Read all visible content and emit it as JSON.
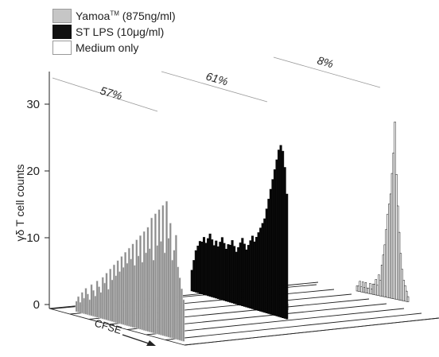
{
  "legend": {
    "items": [
      {
        "label_main": "Yamoa",
        "label_sup": "TM",
        "label_rest": " (875ng/ml)",
        "color": "#9e9e9e"
      },
      {
        "label_main": "ST LPS (10μg/ml)",
        "label_sup": "",
        "label_rest": "",
        "color": "#111111"
      },
      {
        "label_main": "Medium only",
        "label_sup": "",
        "label_rest": "",
        "color": "#ffffff"
      }
    ]
  },
  "chart_data": {
    "type": "histogram-3d",
    "ylabel": "γδ T cell counts",
    "xlabel": "CFSE",
    "ylim": [
      0,
      35
    ],
    "yticks": [
      0,
      10,
      20,
      30
    ],
    "series": [
      {
        "name": "Yamoa (875ng/ml)",
        "color": "#8c8c8c",
        "percent": "57%",
        "values": [
          2,
          3,
          2,
          4,
          3,
          5,
          4,
          3,
          6,
          5,
          4,
          7,
          6,
          5,
          8,
          7,
          9,
          6,
          10,
          8,
          11,
          9,
          12,
          10,
          13,
          11,
          14,
          12,
          15,
          13,
          16,
          12,
          17,
          14,
          18,
          13,
          19,
          15,
          20,
          16,
          22,
          14,
          23,
          17,
          24,
          18,
          25,
          16,
          26,
          19,
          22,
          15,
          17,
          20,
          14,
          12,
          10,
          8
        ]
      },
      {
        "name": "ST LPS (10μg/ml)",
        "color": "#0a0a0a",
        "percent": "61%",
        "values": [
          4,
          6,
          8,
          9,
          10,
          10,
          11,
          10,
          11,
          12,
          11,
          10,
          11,
          10,
          11,
          12,
          11,
          10,
          11,
          11,
          12,
          11,
          10,
          11,
          12,
          13,
          12,
          11,
          12,
          13,
          14,
          13,
          14,
          15,
          16,
          17,
          18,
          20,
          22,
          24,
          26,
          28,
          30,
          32,
          33,
          32,
          29,
          24
        ]
      },
      {
        "name": "Medium only",
        "color": "#ffffff",
        "percent": "8%",
        "values": [
          1,
          1,
          2,
          1,
          2,
          1,
          2,
          1,
          1,
          2,
          1,
          2,
          2,
          3,
          2,
          4,
          3,
          6,
          8,
          10,
          13,
          16,
          18,
          20,
          24,
          28,
          34,
          24,
          18,
          13,
          9,
          6,
          4,
          3,
          2,
          1
        ]
      }
    ]
  }
}
